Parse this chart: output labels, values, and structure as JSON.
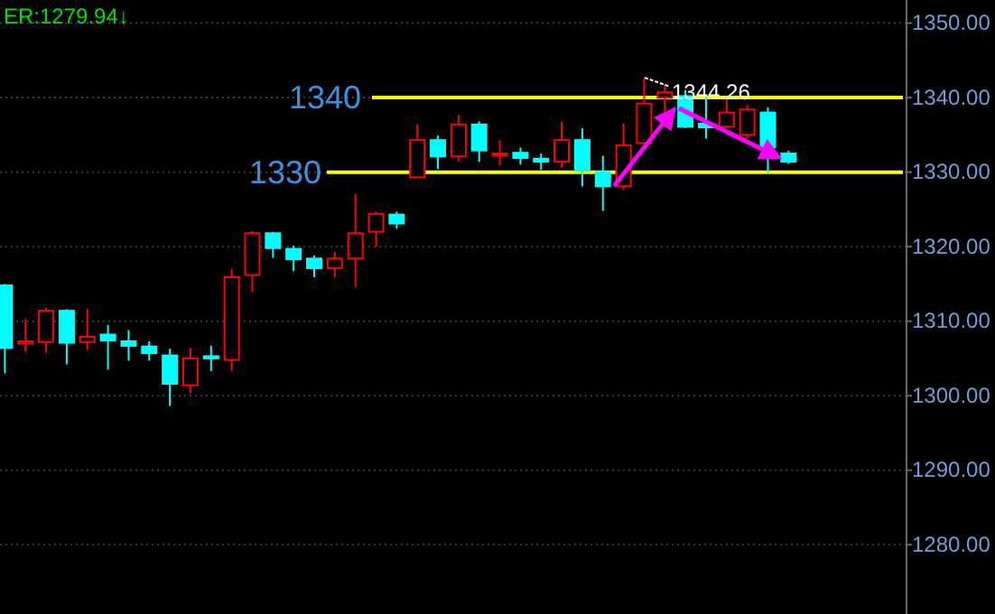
{
  "chart_data": {
    "type": "candlestick",
    "categories": [
      null,
      null,
      null,
      null,
      null,
      null,
      null,
      null,
      null,
      null,
      null,
      null,
      null,
      null,
      null,
      null,
      null,
      null,
      null,
      null,
      null,
      null,
      null,
      null,
      null,
      null,
      null,
      null,
      null,
      null,
      null,
      null,
      null,
      null,
      null,
      null,
      null,
      null,
      null
    ],
    "ohlc": [
      [
        1314.8,
        1315.0,
        1303.0,
        1306.4
      ],
      [
        1307.0,
        1310.3,
        1305.9,
        1307.3
      ],
      [
        1307.2,
        1311.8,
        1305.8,
        1311.4
      ],
      [
        1311.4,
        1311.6,
        1304.2,
        1307.1
      ],
      [
        1307.2,
        1311.7,
        1306.1,
        1307.9
      ],
      [
        1308.2,
        1309.5,
        1303.5,
        1307.4
      ],
      [
        1307.3,
        1308.8,
        1304.7,
        1306.7
      ],
      [
        1306.6,
        1307.3,
        1304.7,
        1305.7
      ],
      [
        1305.4,
        1306.3,
        1298.6,
        1301.6
      ],
      [
        1301.4,
        1306.4,
        1300.3,
        1305.0
      ],
      [
        1305.3,
        1306.7,
        1303.3,
        1305.0
      ],
      [
        1304.8,
        1317.0,
        1303.3,
        1315.9
      ],
      [
        1316.2,
        1322.1,
        1313.9,
        1321.8
      ],
      [
        1321.8,
        1322.0,
        1318.5,
        1319.8
      ],
      [
        1319.7,
        1320.1,
        1316.7,
        1318.3
      ],
      [
        1318.4,
        1318.8,
        1315.9,
        1317.1
      ],
      [
        1317.1,
        1319.3,
        1315.9,
        1318.4
      ],
      [
        1318.4,
        1327.1,
        1314.6,
        1321.8
      ],
      [
        1322.0,
        1324.7,
        1320.0,
        1324.4
      ],
      [
        1324.3,
        1324.7,
        1322.4,
        1323.1
      ],
      [
        1329.3,
        1336.4,
        1329.3,
        1334.3
      ],
      [
        1334.3,
        1334.9,
        1330.4,
        1332.1
      ],
      [
        1332.1,
        1337.7,
        1331.4,
        1336.4
      ],
      [
        1336.4,
        1336.8,
        1331.4,
        1332.9
      ],
      [
        1332.3,
        1334.3,
        1330.9,
        1332.5
      ],
      [
        1332.6,
        1333.3,
        1331.0,
        1331.9
      ],
      [
        1331.8,
        1332.5,
        1330.3,
        1331.4
      ],
      [
        1331.4,
        1336.8,
        1330.6,
        1334.3
      ],
      [
        1334.3,
        1335.9,
        1328.1,
        1330.2
      ],
      [
        1330.0,
        1332.2,
        1324.8,
        1328.1
      ],
      [
        1328.1,
        1336.5,
        1327.6,
        1333.6
      ],
      [
        1333.9,
        1342.6,
        1333.9,
        1339.2
      ],
      [
        1340.0,
        1341.8,
        1338.1,
        1340.7
      ],
      [
        1340.2,
        1341.0,
        1335.9,
        1336.1
      ],
      [
        1336.5,
        1340.2,
        1334.5,
        1336.0
      ],
      [
        1336.1,
        1339.8,
        1336.1,
        1338.0
      ],
      [
        1335.0,
        1339.0,
        1334.5,
        1338.4
      ],
      [
        1338.0,
        1338.7,
        1329.9,
        1333.3
      ],
      [
        1332.5,
        1332.9,
        1331.1,
        1331.4
      ]
    ],
    "colors": [
      "#00ffff",
      "#ff0000",
      "#ff0000",
      "#00ffff",
      "#ff0000",
      "#00ffff",
      "#00ffff",
      "#00ffff",
      "#00ffff",
      "#ff0000",
      "#00ffff",
      "#ff0000",
      "#ff0000",
      "#00ffff",
      "#00ffff",
      "#00ffff",
      "#ff0000",
      "#ff0000",
      "#ff0000",
      "#00ffff",
      "#ff0000",
      "#00ffff",
      "#ff0000",
      "#00ffff",
      "#ff0000",
      "#00ffff",
      "#00ffff",
      "#ff0000",
      "#00ffff",
      "#00ffff",
      "#ff0000",
      "#ff0000",
      "#ff0000",
      "#00ffff",
      "#00ffff",
      "#ff0000",
      "#ff0000",
      "#00ffff",
      "#00ffff"
    ],
    "ylim": [
      1270.7,
      1353.1
    ],
    "yticks": [
      {
        "value": 1280,
        "label": "1280.00"
      },
      {
        "value": 1290,
        "label": "1290.00"
      },
      {
        "value": 1300,
        "label": "1300.00"
      },
      {
        "value": 1310,
        "label": "1310.00"
      },
      {
        "value": 1320,
        "label": "1320.00"
      },
      {
        "value": 1330,
        "label": "1330.00"
      },
      {
        "value": 1340,
        "label": "1340.00"
      },
      {
        "value": 1350,
        "label": "1350.00"
      }
    ],
    "grid": "y",
    "ref_lines": [
      {
        "axis": "y",
        "value": 1340,
        "label": "1340",
        "color": "#ffff00"
      },
      {
        "axis": "y",
        "value": 1330,
        "label": "1330",
        "color": "#ffff00"
      }
    ],
    "annotations": [
      "ER:1279.94↓",
      "1344.26"
    ]
  }
}
